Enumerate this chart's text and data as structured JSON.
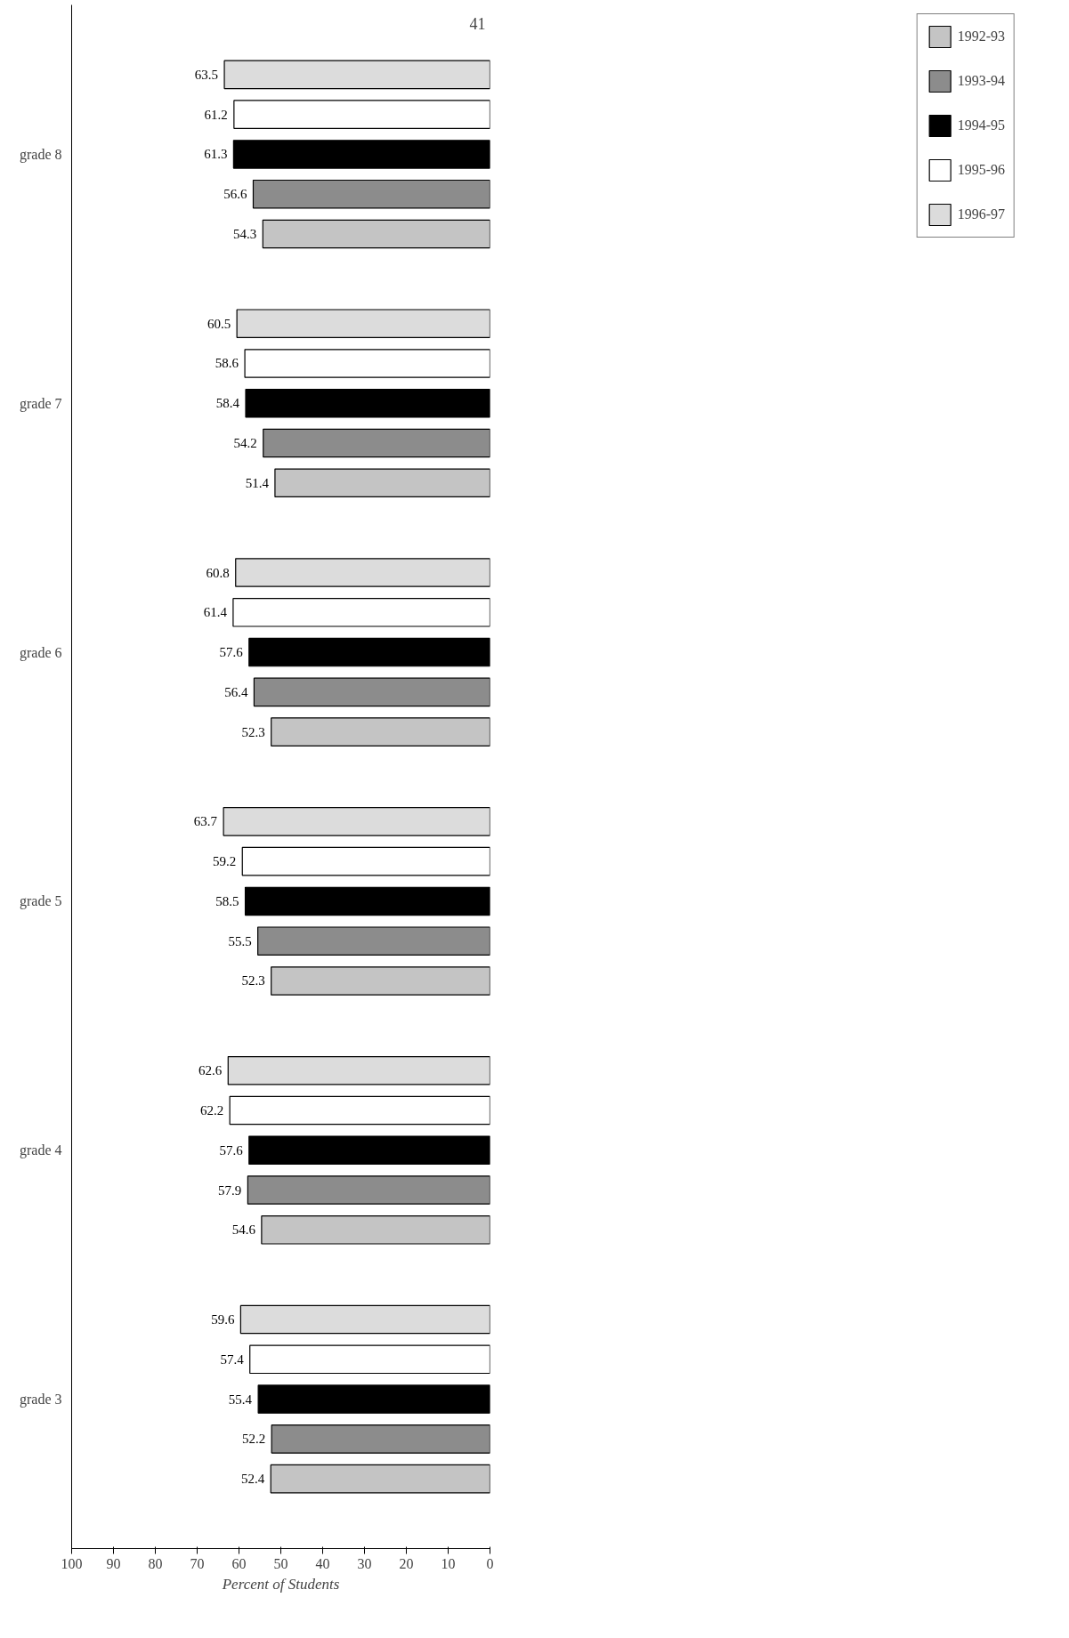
{
  "chart_data": {
    "type": "bar",
    "orientation": "horizontal",
    "xlabel": "Percent of Students",
    "categories": [
      "grade 8",
      "grade 7",
      "grade 6",
      "grade 5",
      "grade 4",
      "grade 3"
    ],
    "series": [
      {
        "name": "1996-97",
        "color": "#dcdcdc",
        "values": [
          63.5,
          60.5,
          60.8,
          63.7,
          62.6,
          59.6
        ]
      },
      {
        "name": "1995-96",
        "color": "#ffffff",
        "values": [
          61.2,
          58.6,
          61.4,
          59.2,
          62.2,
          57.4
        ]
      },
      {
        "name": "1994-95",
        "color": "#000000",
        "values": [
          61.3,
          58.4,
          57.6,
          58.5,
          57.6,
          55.4
        ]
      },
      {
        "name": "1993-94",
        "color": "#8c8c8c",
        "values": [
          56.6,
          54.2,
          56.4,
          55.5,
          57.9,
          52.2
        ]
      },
      {
        "name": "1992-93",
        "color": "#c4c4c4",
        "values": [
          54.3,
          51.4,
          52.3,
          52.3,
          54.6,
          52.4
        ]
      }
    ],
    "xlim": [
      100,
      0
    ],
    "xticks": [
      0,
      10,
      20,
      30,
      40,
      50,
      60,
      70,
      80,
      90,
      100
    ],
    "data_labels": true,
    "grid": false,
    "legend": "right",
    "annotations": [
      "41"
    ]
  }
}
